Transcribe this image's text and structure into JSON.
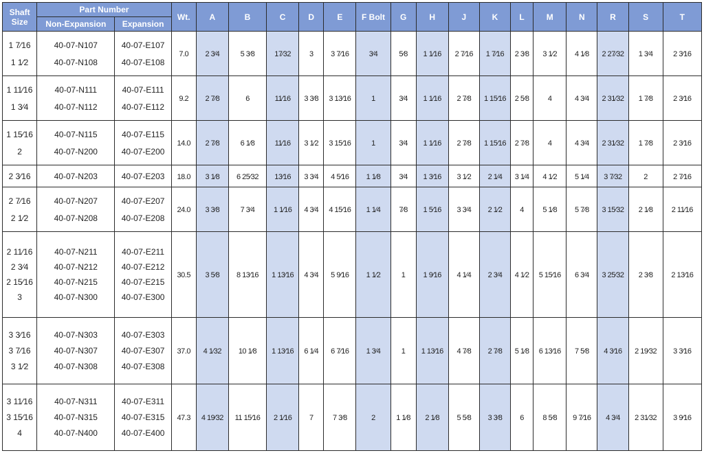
{
  "header": {
    "shaft_size": "Shaft Size",
    "part_number": "Part Number",
    "non_expansion": "Non-Expansion",
    "expansion": "Expansion",
    "dims": [
      "Wt.",
      "A",
      "B",
      "C",
      "D",
      "E",
      "F Bolt",
      "G",
      "H",
      "J",
      "K",
      "L",
      "M",
      "N",
      "R",
      "S",
      "T"
    ]
  },
  "colors": {
    "header_bg": "#7f9bd5",
    "shade_bg": "#cfdaf0",
    "border": "#2a2a2a"
  },
  "rows": [
    {
      "shaft": [
        "1 7⁄16",
        "1 1⁄2"
      ],
      "non_exp": [
        "40-07-N107",
        "40-07-N108"
      ],
      "exp": [
        "40-07-E107",
        "40-07-E108"
      ],
      "dims": [
        "7.0",
        "2 3⁄4",
        "5 3⁄8",
        "17⁄32",
        "3",
        "3 7⁄16",
        "3⁄4",
        "5⁄8",
        "1 1⁄16",
        "2 7⁄16",
        "1 7⁄16",
        "2 3⁄8",
        "3 1⁄2",
        "4 1⁄8",
        "2 27⁄32",
        "1 3⁄4",
        "2 3⁄16"
      ]
    },
    {
      "shaft": [
        "1 11⁄16",
        "1 3⁄4"
      ],
      "non_exp": [
        "40-07-N111",
        "40-07-N112"
      ],
      "exp": [
        "40-07-E111",
        "40-07-E112"
      ],
      "dims": [
        "9.2",
        "2 7⁄8",
        "6",
        "11⁄16",
        "3 3⁄8",
        "3 13⁄16",
        "1",
        "3⁄4",
        "1 1⁄16",
        "2 7⁄8",
        "1 15⁄16",
        "2 5⁄8",
        "4",
        "4 3⁄4",
        "2 31⁄32",
        "1 7⁄8",
        "2 3⁄16"
      ]
    },
    {
      "shaft": [
        "1 15⁄16",
        "2"
      ],
      "non_exp": [
        "40-07-N115",
        "40-07-N200"
      ],
      "exp": [
        "40-07-E115",
        "40-07-E200"
      ],
      "dims": [
        "14.0",
        "2 7⁄8",
        "6 1⁄8",
        "11⁄16",
        "3 1⁄2",
        "3 15⁄16",
        "1",
        "3⁄4",
        "1 1⁄16",
        "2 7⁄8",
        "1 15⁄16",
        "2 7⁄8",
        "4",
        "4 3⁄4",
        "2 31⁄32",
        "1 7⁄8",
        "2 3⁄16"
      ]
    },
    {
      "shaft": [
        "2 3⁄16"
      ],
      "non_exp": [
        "40-07-N203"
      ],
      "exp": [
        "40-07-E203"
      ],
      "dims": [
        "18.0",
        "3 1⁄8",
        "6 25⁄32",
        "13⁄16",
        "3 3⁄4",
        "4 5⁄16",
        "1 1⁄8",
        "3⁄4",
        "1 3⁄16",
        "3 1⁄2",
        "2 1⁄4",
        "3 1⁄4",
        "4 1⁄2",
        "5 1⁄4",
        "3 7⁄32",
        "2",
        "2 7⁄16"
      ]
    },
    {
      "shaft": [
        "2 7⁄16",
        "2 1⁄2"
      ],
      "non_exp": [
        "40-07-N207",
        "40-07-N208"
      ],
      "exp": [
        "40-07-E207",
        "40-07-E208"
      ],
      "dims": [
        "24.0",
        "3 3⁄8",
        "7 3⁄4",
        "1 1⁄16",
        "4 3⁄4",
        "4 15⁄16",
        "1 1⁄4",
        "7⁄8",
        "1 5⁄16",
        "3 3⁄4",
        "2 1⁄2",
        "4",
        "5 1⁄8",
        "5 7⁄8",
        "3 15⁄32",
        "2 1⁄8",
        "2 11⁄16"
      ]
    },
    {
      "shaft": [
        "2 11⁄16",
        "2 3⁄4",
        "2 15⁄16",
        "3"
      ],
      "non_exp": [
        "40-07-N211",
        "40-07-N212",
        "40-07-N215",
        "40-07-N300"
      ],
      "exp": [
        "40-07-E211",
        "40-07-E212",
        "40-07-E215",
        "40-07-E300"
      ],
      "dims": [
        "30.5",
        "3 5⁄8",
        "8 13⁄16",
        "1 13⁄16",
        "4 3⁄4",
        "5 9⁄16",
        "1 1⁄2",
        "1",
        "1 9⁄16",
        "4 1⁄4",
        "2 3⁄4",
        "4 1⁄2",
        "5 15⁄16",
        "6 3⁄4",
        "3 25⁄32",
        "2 3⁄8",
        "2 13⁄16"
      ]
    },
    {
      "shaft": [
        "3 3⁄16",
        "3 7⁄16",
        "3 1⁄2"
      ],
      "non_exp": [
        "40-07-N303",
        "40-07-N307",
        "40-07-N308"
      ],
      "exp": [
        "40-07-E303",
        "40-07-E307",
        "40-07-E308"
      ],
      "dims": [
        "37.0",
        "4 1⁄32",
        "10 1⁄8",
        "1 13⁄16",
        "6 1⁄4",
        "6 7⁄16",
        "1 3⁄4",
        "1",
        "1 13⁄16",
        "4 7⁄8",
        "2 7⁄8",
        "5 1⁄8",
        "6 13⁄16",
        "7 5⁄8",
        "4 3⁄16",
        "2 19⁄32",
        "3 3⁄16"
      ]
    },
    {
      "shaft": [
        "3 11⁄16",
        "3 15⁄16",
        "4"
      ],
      "non_exp": [
        "40-07-N311",
        "40-07-N315",
        "40-07-N400"
      ],
      "exp": [
        "40-07-E311",
        "40-07-E315",
        "40-07-E400"
      ],
      "dims": [
        "47.3",
        "4 19⁄32",
        "11 15⁄16",
        "2 1⁄16",
        "7",
        "7 3⁄8",
        "2",
        "1 1⁄8",
        "2 1⁄8",
        "5 5⁄8",
        "3 3⁄8",
        "6",
        "8 5⁄8",
        "9 7⁄16",
        "4 3⁄4",
        "2 31⁄32",
        "3 9⁄16"
      ]
    }
  ]
}
